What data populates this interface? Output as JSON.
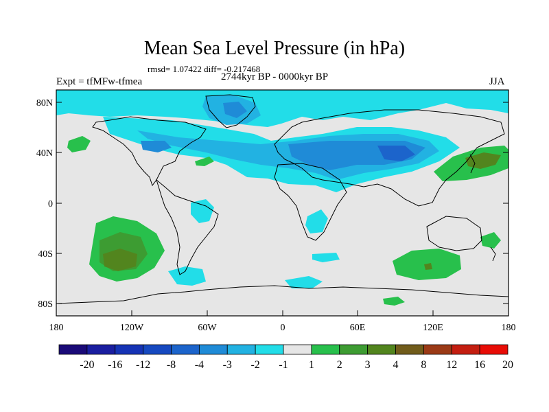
{
  "title": "Mean Sea Level Pressure (in hPa)",
  "stats": "rmsd= 1.07422 diff= -0.217468",
  "experiment": "Expt = tfMFw-tfmea",
  "period": "2744kyr BP - 0000kyr BP",
  "season": "JJA",
  "lat_labels": [
    "80N",
    "40N",
    "0",
    "40S",
    "80S"
  ],
  "lon_labels": [
    "180",
    "120W",
    "60W",
    "0",
    "60E",
    "120E",
    "180"
  ],
  "colorbar": {
    "labels": [
      "-20",
      "-16",
      "-12",
      "-8",
      "-4",
      "-3",
      "-2",
      "-1",
      "1",
      "2",
      "3",
      "4",
      "8",
      "12",
      "16",
      "20"
    ],
    "colors": [
      "#1a0a78",
      "#1a1ea0",
      "#1533b5",
      "#1649c0",
      "#1c64cb",
      "#1f8bd7",
      "#22b2e2",
      "#22dde8",
      "#e6e6e6",
      "#28c04c",
      "#3d9c32",
      "#52851e",
      "#715c1b",
      "#9b3a16",
      "#c41e10",
      "#e80c06"
    ]
  }
}
